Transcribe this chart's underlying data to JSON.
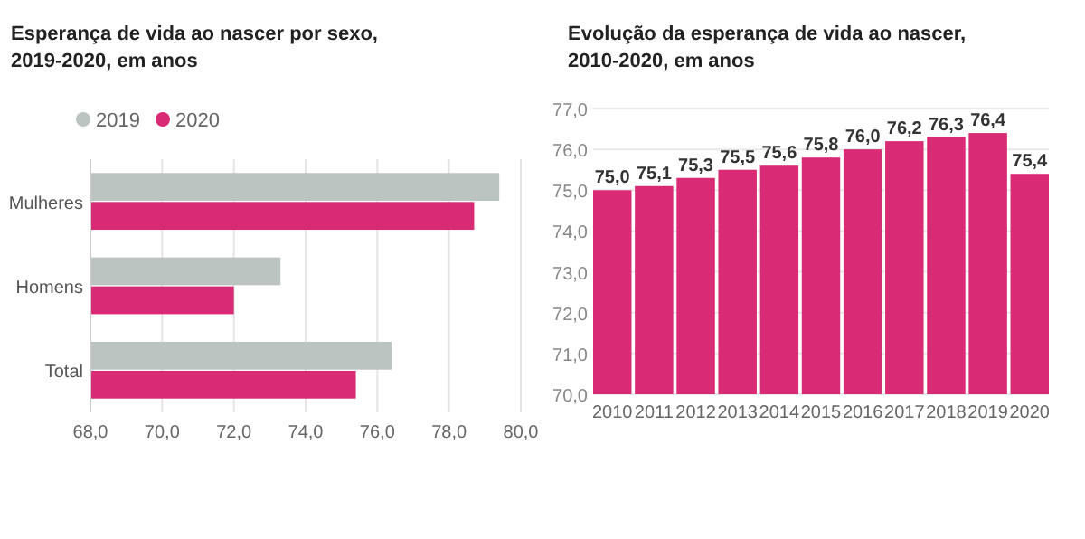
{
  "chart_data": [
    {
      "type": "bar",
      "orientation": "horizontal",
      "title": "Esperança de vida ao nascer por sexo, 2019-2020, em anos",
      "categories": [
        "Mulheres",
        "Homens",
        "Total"
      ],
      "series": [
        {
          "name": "2019",
          "color": "#bcc4c1",
          "values": [
            79.4,
            73.3,
            76.4
          ]
        },
        {
          "name": "2020",
          "color": "#d92b75",
          "values": [
            78.7,
            72.0,
            75.4
          ]
        }
      ],
      "xlim": [
        68,
        80
      ],
      "xticks": [
        {
          "value": 68,
          "label": "68,0"
        },
        {
          "value": 70,
          "label": "70,0"
        },
        {
          "value": 72,
          "label": "72,0"
        },
        {
          "value": 74,
          "label": "74,0"
        },
        {
          "value": 76,
          "label": "76,0"
        },
        {
          "value": 78,
          "label": "78,0"
        },
        {
          "value": 80,
          "label": "80,0"
        }
      ],
      "grid": "x",
      "legend": "top left"
    },
    {
      "type": "bar",
      "title": "Evolução da esperança de vida ao nascer, 2010-2020, em anos",
      "categories": [
        "2010",
        "2011",
        "2012",
        "2013",
        "2014",
        "2015",
        "2016",
        "2017",
        "2018",
        "2019",
        "2020"
      ],
      "values": [
        75.0,
        75.1,
        75.3,
        75.5,
        75.6,
        75.8,
        76.0,
        76.2,
        76.3,
        76.4,
        75.4
      ],
      "color": "#d92b75",
      "value_labels": [
        "75,0",
        "75,1",
        "75,3",
        "75,5",
        "75,6",
        "75,8",
        "76,0",
        "76,2",
        "76,3",
        "76,4",
        "75,4"
      ],
      "ylim": [
        70,
        77
      ],
      "yticks": [
        {
          "value": 70,
          "label": "70,0"
        },
        {
          "value": 71,
          "label": "71,0"
        },
        {
          "value": 72,
          "label": "72,0"
        },
        {
          "value": 73,
          "label": "73,0"
        },
        {
          "value": 74,
          "label": "74,0"
        },
        {
          "value": 75,
          "label": "75,0"
        },
        {
          "value": 76,
          "label": "76,0"
        },
        {
          "value": 77,
          "label": "77,0"
        }
      ],
      "grid": "y"
    }
  ]
}
